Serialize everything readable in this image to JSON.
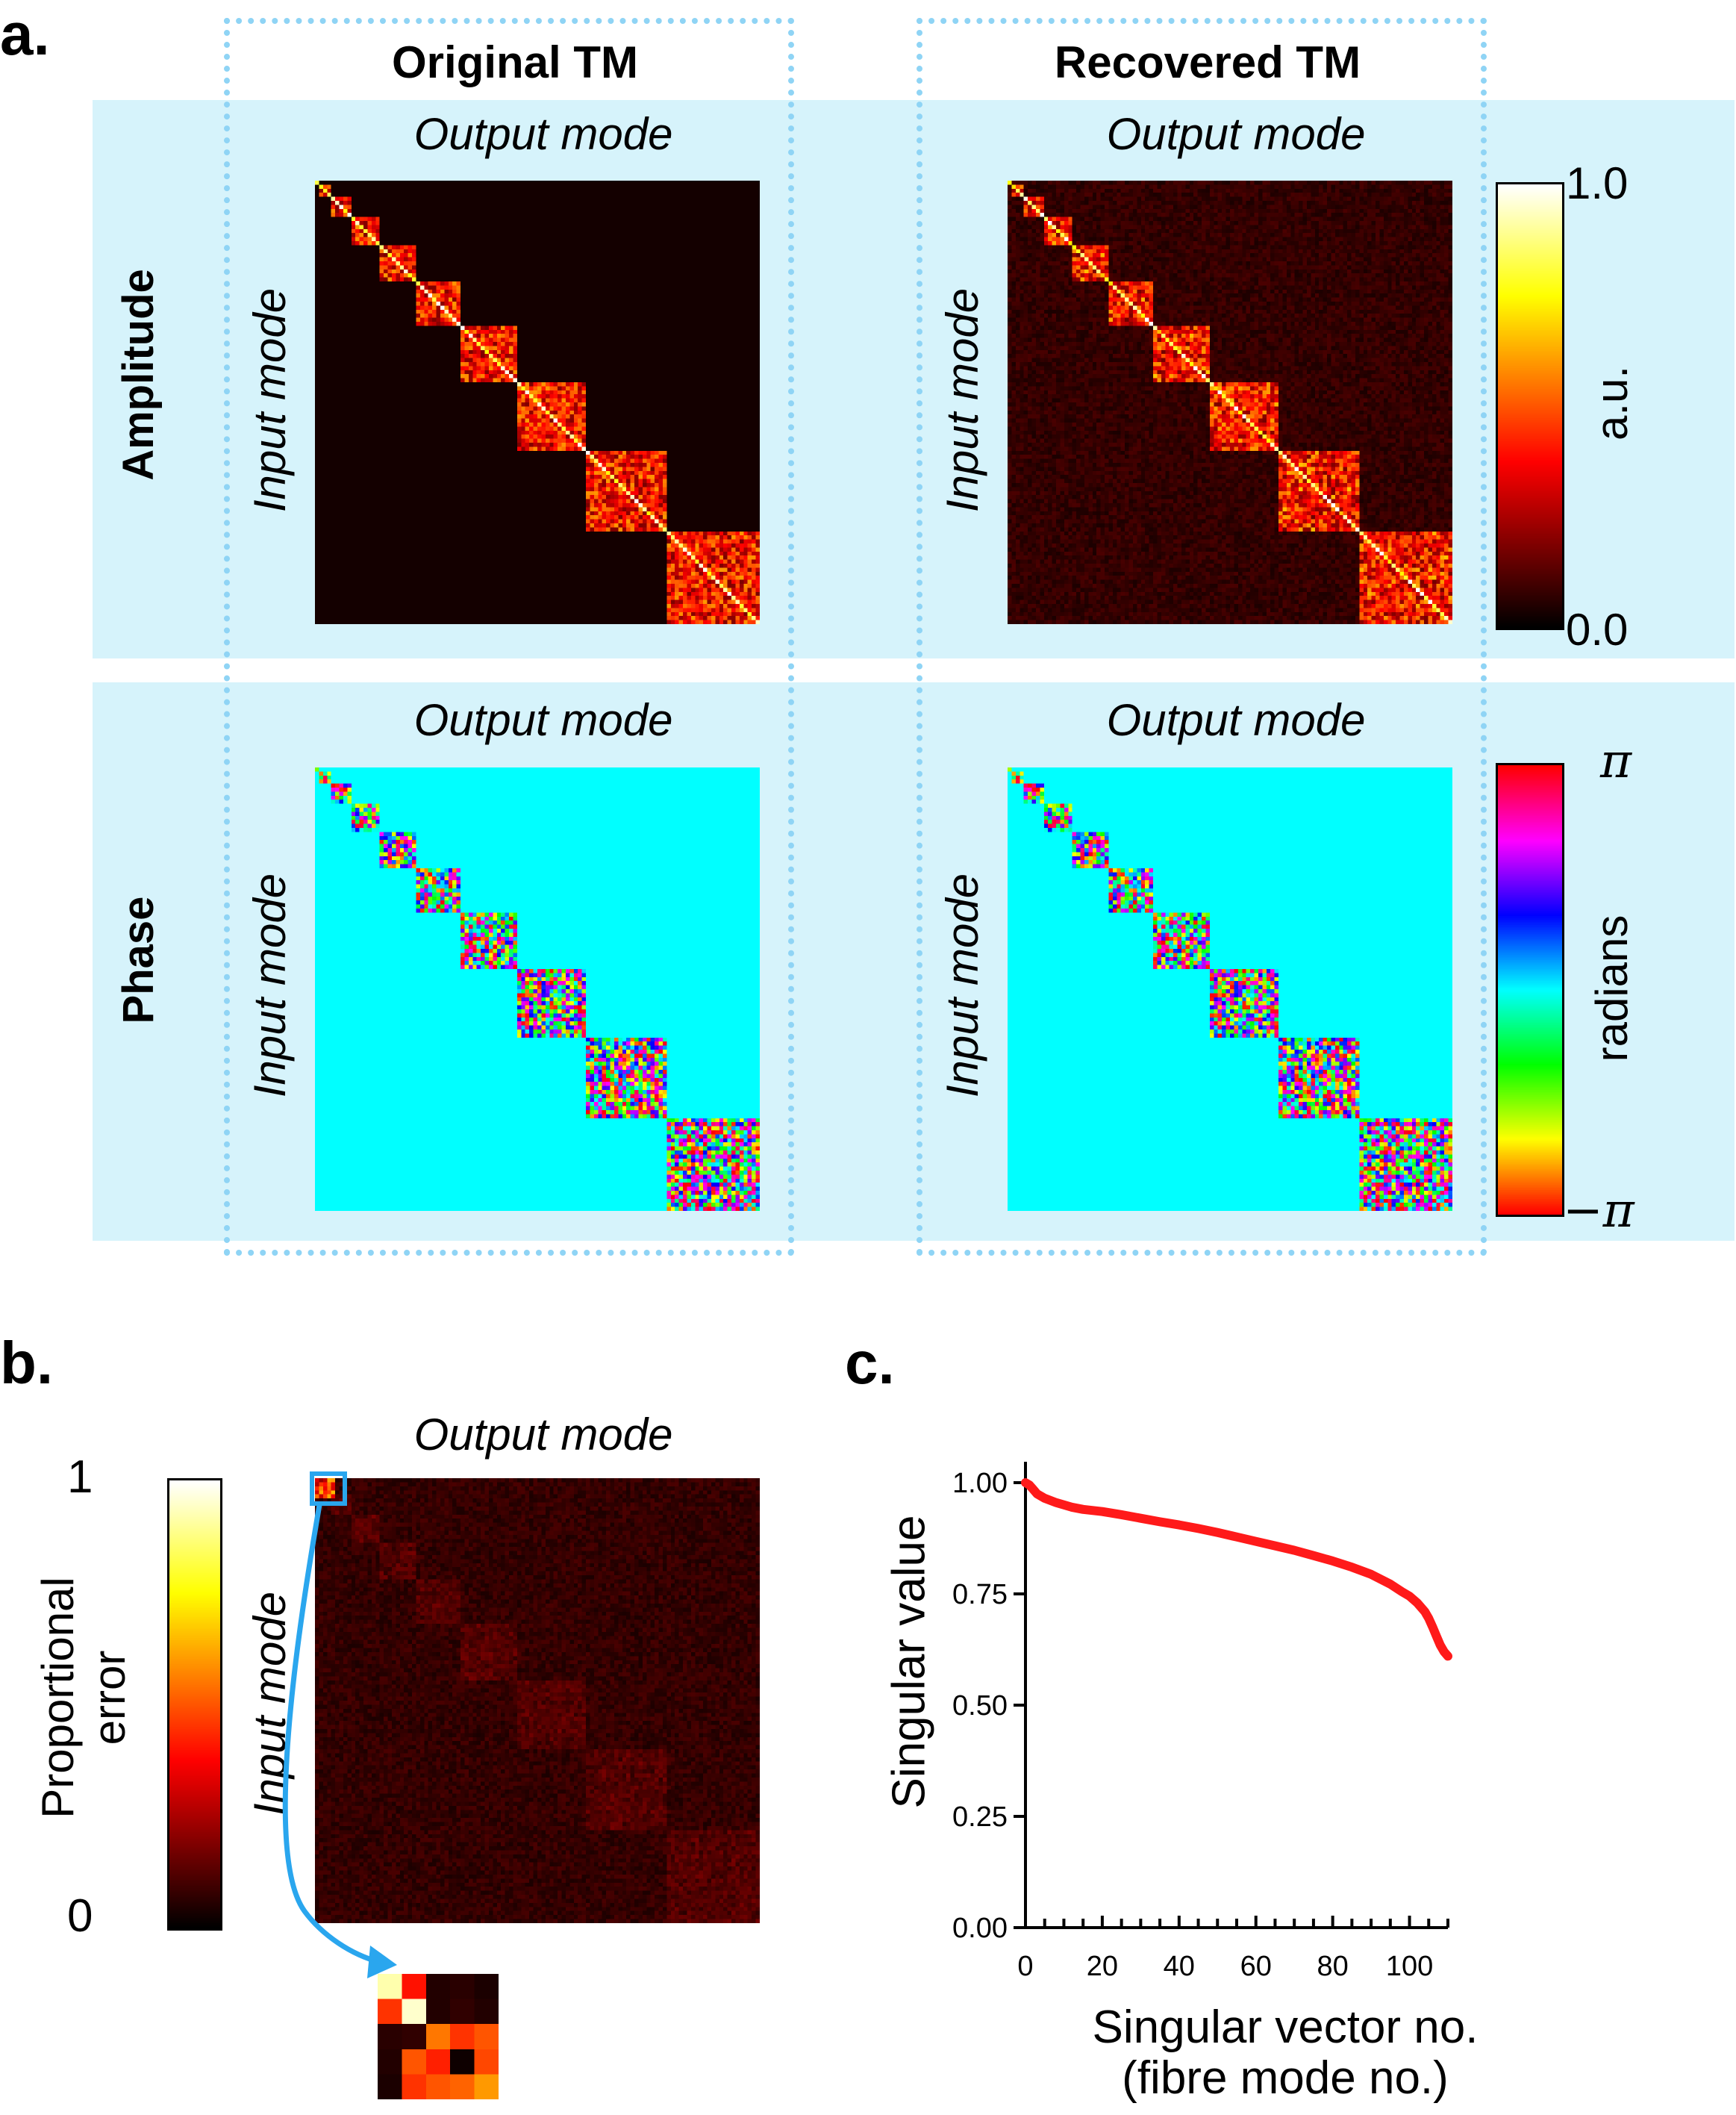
{
  "panels": {
    "a": "a.",
    "b": "b.",
    "c": "c."
  },
  "columns": {
    "original": "Original TM",
    "recovered": "Recovered TM"
  },
  "rows": {
    "amplitude": "Amplitude",
    "phase": "Phase"
  },
  "axes": {
    "output": "Output mode",
    "input": "Input mode"
  },
  "colorbars": {
    "amplitude": {
      "max": "1.0",
      "min": "0.0",
      "unit": "a.u."
    },
    "phase": {
      "max": "π",
      "min": "−π",
      "unit": "radians"
    },
    "error": {
      "max": "1",
      "min": "0",
      "label_line1": "Proportional",
      "label_line2": "error"
    }
  },
  "colors": {
    "band": "#d6f3fb",
    "dotted_box": "#8fd4f5",
    "phase_background": "#00ffff",
    "curve": "#ff1a1a",
    "zoom_arrow": "#2aa6ee"
  },
  "matrix": {
    "modes": 110,
    "block_sizes": [
      1,
      3,
      5,
      7,
      9,
      11,
      14,
      17,
      20,
      23
    ]
  },
  "chart_data": {
    "type": "line",
    "title": "",
    "xlabel_line1": "Singular vector no.",
    "xlabel_line2": "(fibre mode no.)",
    "ylabel": "Singular value",
    "xlim": [
      0,
      110
    ],
    "ylim": [
      0,
      1
    ],
    "xticks": [
      "0",
      "20",
      "40",
      "60",
      "80",
      "100"
    ],
    "xtick_values": [
      0,
      20,
      40,
      60,
      80,
      100
    ],
    "yticks": [
      "0.00",
      "0.25",
      "0.50",
      "0.75",
      "1.00"
    ],
    "ytick_values": [
      0,
      0.25,
      0.5,
      0.75,
      1.0
    ],
    "series": [
      {
        "name": "singular values",
        "x": [
          0,
          1,
          2,
          3,
          5,
          8,
          12,
          15,
          20,
          25,
          30,
          35,
          40,
          45,
          50,
          55,
          60,
          65,
          70,
          75,
          80,
          85,
          90,
          95,
          98,
          100,
          102,
          104,
          105,
          106,
          107,
          108,
          109,
          110
        ],
        "values": [
          1.0,
          0.995,
          0.985,
          0.975,
          0.965,
          0.955,
          0.945,
          0.94,
          0.935,
          0.928,
          0.92,
          0.912,
          0.905,
          0.897,
          0.888,
          0.878,
          0.868,
          0.858,
          0.848,
          0.836,
          0.824,
          0.81,
          0.794,
          0.772,
          0.755,
          0.745,
          0.73,
          0.71,
          0.695,
          0.676,
          0.655,
          0.635,
          0.62,
          0.61
        ]
      }
    ]
  }
}
